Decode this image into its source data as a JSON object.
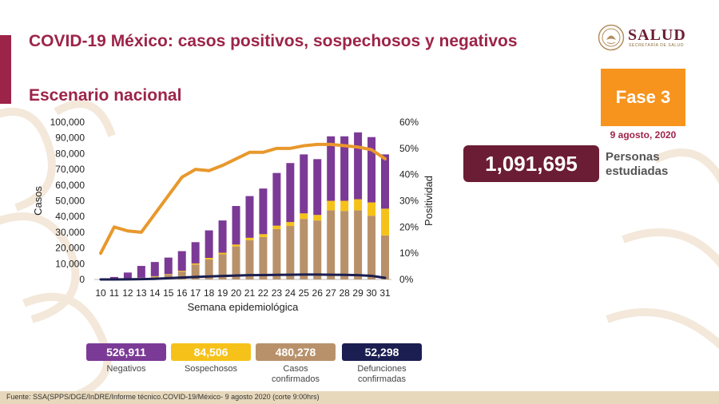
{
  "header": {
    "title": "COVID-19 México: casos positivos, sospechosos y negativos",
    "subtitle": "Escenario nacional"
  },
  "logo": {
    "name": "SALUD",
    "sub": "SECRETARÍA DE SALUD"
  },
  "phase": {
    "label": "Fase 3",
    "date": "9 agosto, 2020"
  },
  "total": {
    "value": "1,091,695",
    "label_line1": "Personas",
    "label_line2": "estudiadas"
  },
  "colors": {
    "brand": "#9d2449",
    "negativos": "#7b3a96",
    "sospechosos": "#f6c21a",
    "confirmados": "#b8916a",
    "defunciones": "#1b1e50",
    "positividad": "#e8982c"
  },
  "legend": [
    {
      "value": "526,911",
      "label": "Negativos",
      "color": "#7b3a96"
    },
    {
      "value": "84,506",
      "label": "Sospechosos",
      "color": "#f6c21a"
    },
    {
      "value": "480,278",
      "label": "Casos confirmados",
      "color": "#b8916a"
    },
    {
      "value": "52,298",
      "label": "Defunciones confirmadas",
      "color": "#1b1e50"
    }
  ],
  "footer": "Fuente: SSA(SPPS/DGE/InDRE/Informe técnico.COVID-19/México- 9 agosto 2020 (corte 9:00hrs)",
  "chart_data": {
    "type": "bar",
    "stacked": true,
    "xlabel": "Semana epidemiológica",
    "ylabel": "Casos",
    "y2label": "Positividad",
    "ylim": [
      0,
      100000
    ],
    "y2lim": [
      0,
      60
    ],
    "yticks": [
      "0",
      "10,000",
      "20,000",
      "30,000",
      "40,000",
      "50,000",
      "60,000",
      "70,000",
      "80,000",
      "90,000",
      "100,000"
    ],
    "y2ticks": [
      "0%",
      "10%",
      "20%",
      "30%",
      "40%",
      "50%",
      "60%"
    ],
    "categories": [
      "10",
      "11",
      "12",
      "13",
      "14",
      "15",
      "16",
      "17",
      "18",
      "19",
      "20",
      "21",
      "22",
      "23",
      "24",
      "25",
      "26",
      "27",
      "28",
      "29",
      "30",
      "31"
    ],
    "series": [
      {
        "name": "Casos confirmados",
        "values": [
          0,
          50,
          300,
          900,
          1800,
          3000,
          5000,
          9500,
          12800,
          16000,
          21000,
          25000,
          27000,
          32000,
          34000,
          38500,
          37500,
          44000,
          43500,
          44000,
          40500,
          28000
        ]
      },
      {
        "name": "Sospechosos",
        "values": [
          0,
          20,
          100,
          200,
          300,
          400,
          500,
          700,
          900,
          1000,
          1200,
          1500,
          1800,
          2200,
          2500,
          3500,
          3500,
          6000,
          6500,
          7000,
          8500,
          17000
        ]
      },
      {
        "name": "Negativos",
        "values": [
          0,
          1500,
          4000,
          7500,
          9000,
          10500,
          12500,
          13500,
          17500,
          20500,
          24500,
          26500,
          29000,
          33500,
          37500,
          37500,
          35500,
          41000,
          41000,
          42500,
          41500,
          34500
        ]
      },
      {
        "name": "Defunciones confirmadas",
        "axis": "left",
        "values": [
          0,
          20,
          80,
          200,
          400,
          800,
          1200,
          1600,
          1900,
          2200,
          2500,
          2700,
          2800,
          2900,
          3000,
          3100,
          3100,
          3000,
          2900,
          2700,
          2300,
          1000
        ]
      },
      {
        "name": "Positividad",
        "axis": "right",
        "values": [
          10,
          20,
          18.5,
          18,
          25,
          32,
          39,
          42,
          41.5,
          43.5,
          46,
          48.5,
          48.5,
          50,
          50,
          51,
          51.5,
          51.5,
          51,
          50.5,
          49.5,
          46
        ]
      }
    ]
  }
}
